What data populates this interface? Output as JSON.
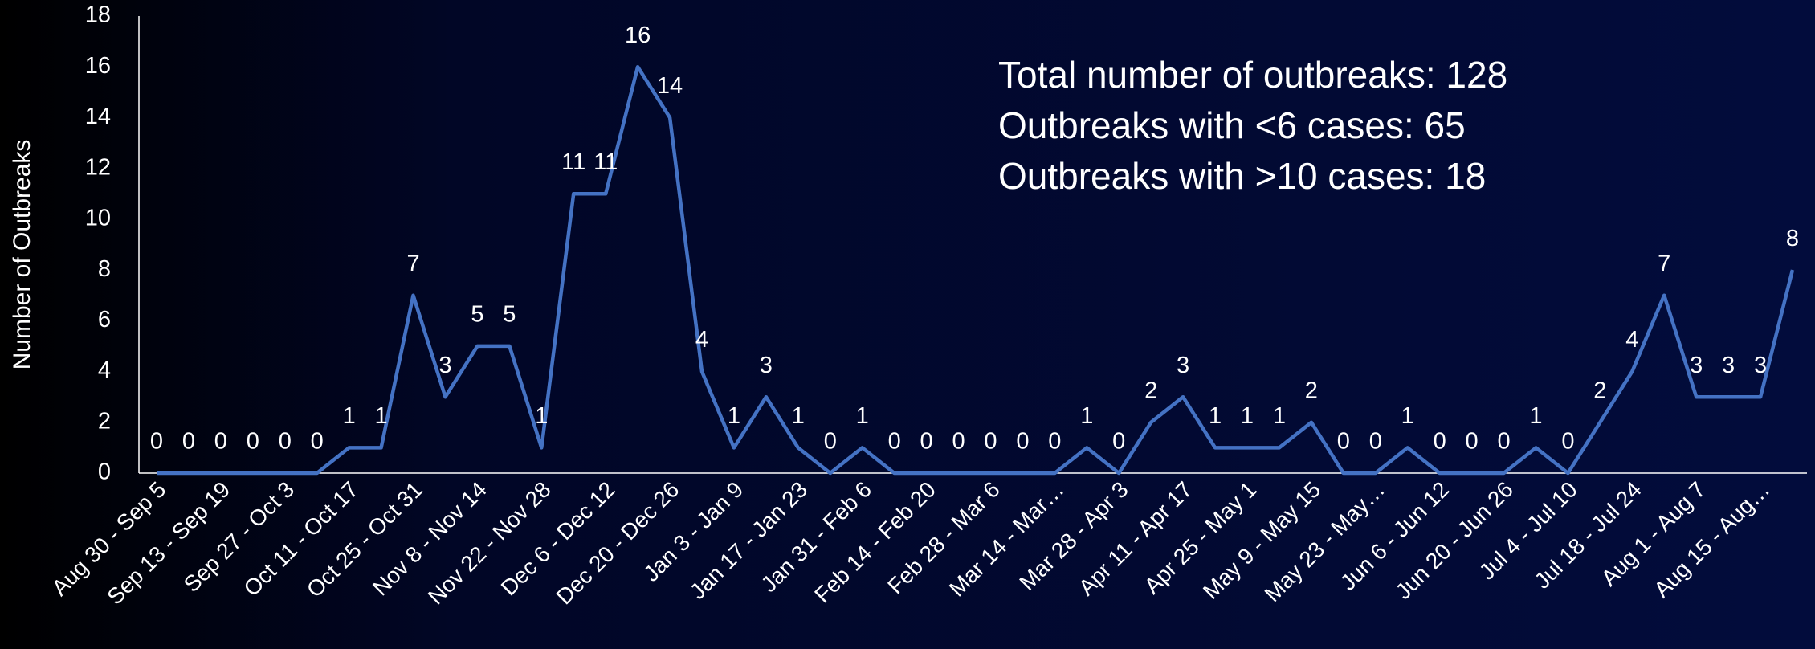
{
  "chart_data": {
    "type": "line",
    "y_label": "Number of Outbreaks",
    "annotations": [
      "Total number of outbreaks: 128",
      "Outbreaks with <6 cases: 65",
      "Outbreaks with >10 cases: 18"
    ],
    "categories": [
      "Aug 30 - Sep 5",
      null,
      "Sep 13 - Sep 19",
      null,
      "Sep 27 - Oct 3",
      null,
      "Oct 11 - Oct 17",
      null,
      "Oct 25 - Oct 31",
      null,
      "Nov 8 - Nov 14",
      null,
      "Nov 22 - Nov 28",
      null,
      "Dec 6 - Dec 12",
      null,
      "Dec 20 - Dec 26",
      null,
      "Jan 3 - Jan 9",
      null,
      "Jan 17 - Jan 23",
      null,
      "Jan 31 - Feb 6",
      null,
      "Feb 14 - Feb 20",
      null,
      "Feb 28 - Mar 6",
      null,
      "Mar 14 - Mar…",
      null,
      "Mar 28 - Apr 3",
      null,
      "Apr 11 - Apr 17",
      null,
      "Apr 25 - May 1",
      null,
      "May 9 - May 15",
      null,
      "May 23 - May…",
      null,
      "Jun 6 - Jun 12",
      null,
      "Jun 20 - Jun 26",
      null,
      "Jul 4 - Jul 10",
      null,
      "Jul 18 - Jul 24",
      null,
      "Aug 1 - Aug 7",
      null,
      "Aug 15 - Aug…",
      null
    ],
    "values": [
      0,
      0,
      0,
      0,
      0,
      0,
      1,
      1,
      7,
      3,
      5,
      5,
      1,
      11,
      11,
      16,
      14,
      4,
      1,
      3,
      1,
      0,
      1,
      0,
      0,
      0,
      0,
      0,
      0,
      1,
      0,
      2,
      3,
      1,
      1,
      1,
      2,
      0,
      0,
      1,
      0,
      0,
      0,
      1,
      0,
      2,
      4,
      7,
      3,
      3,
      3,
      8
    ],
    "color": "#4472c4",
    "ylim": [
      0,
      18
    ],
    "yticks": [
      0,
      2,
      4,
      6,
      8,
      10,
      12,
      14,
      16,
      18
    ],
    "grid": false
  }
}
